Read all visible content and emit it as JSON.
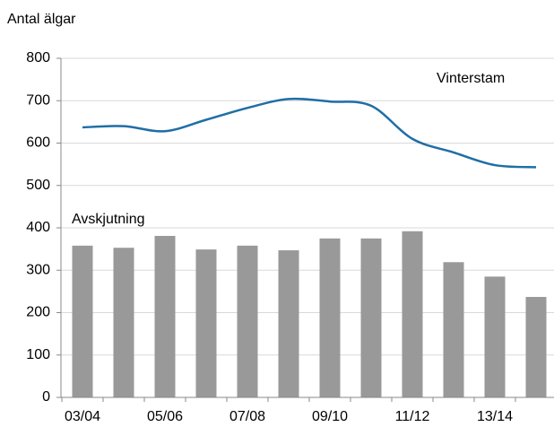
{
  "chart_data": {
    "type": "bar_line",
    "y_label": "Antal älgar",
    "categories": [
      "03/04",
      null,
      "05/06",
      null,
      "07/08",
      null,
      "09/10",
      null,
      "11/12",
      null,
      "13/14",
      null
    ],
    "series": [
      {
        "name": "Avskjutning",
        "type": "bar",
        "color": "#999999",
        "values": [
          358,
          353,
          381,
          349,
          358,
          347,
          375,
          375,
          392,
          319,
          285,
          237
        ]
      },
      {
        "name": "Vinterstam",
        "type": "line",
        "color": "#1f6ea6",
        "values": [
          637,
          640,
          628,
          655,
          683,
          704,
          698,
          688,
          610,
          578,
          548,
          543
        ]
      }
    ],
    "ylim": [
      0,
      800
    ],
    "yticks": [
      0,
      100,
      200,
      300,
      400,
      500,
      600,
      700,
      800
    ],
    "grid": true
  }
}
